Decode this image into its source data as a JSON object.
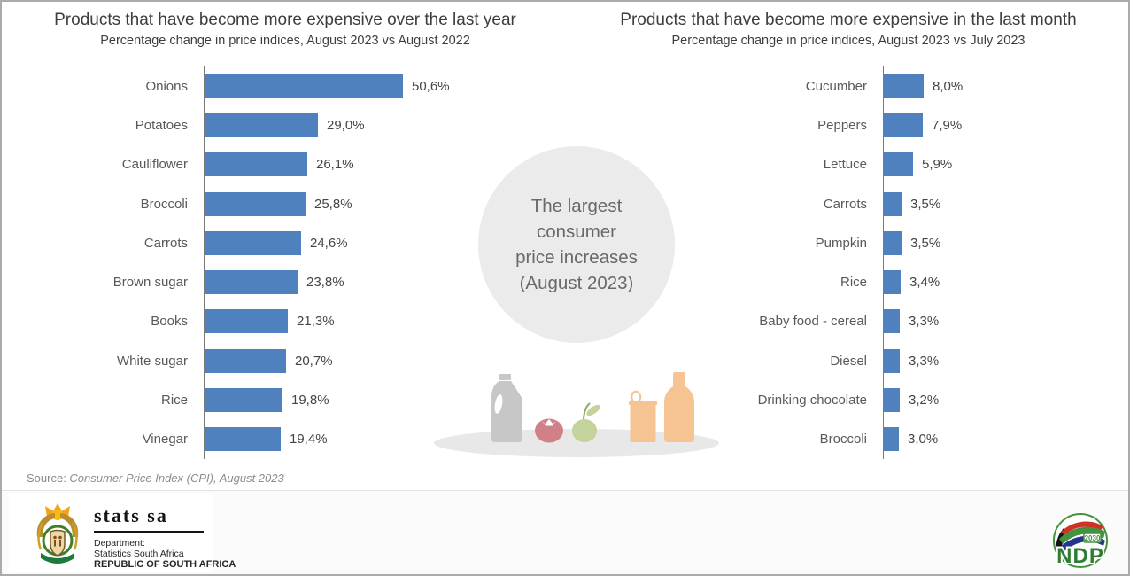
{
  "chart_data": [
    {
      "type": "bar",
      "orientation": "horizontal",
      "title": "Products that have become more expensive over the last year",
      "subtitle": "Percentage change in price indices, August 2023 vs August 2022",
      "categories": [
        "Onions",
        "Potatoes",
        "Cauliflower",
        "Broccoli",
        "Carrots",
        "Brown sugar",
        "Books",
        "White sugar",
        "Rice",
        "Vinegar"
      ],
      "values": [
        50.6,
        29.0,
        26.1,
        25.8,
        24.6,
        23.8,
        21.3,
        20.7,
        19.8,
        19.4
      ],
      "value_labels": [
        "50,6%",
        "29,0%",
        "26,1%",
        "25,8%",
        "24,6%",
        "23,8%",
        "21,3%",
        "20,7%",
        "19,8%",
        "19,4%"
      ],
      "bar_color": "#4e81bd",
      "grid": false,
      "legend": false,
      "axis_tick_labels_visible": false
    },
    {
      "type": "bar",
      "orientation": "horizontal",
      "title": "Products that have become more expensive in the last month",
      "subtitle": "Percentage change in price indices, August 2023 vs July 2023",
      "categories": [
        "Cucumber",
        "Peppers",
        "Lettuce",
        "Carrots",
        "Pumpkin",
        "Rice",
        "Baby food - cereal",
        "Diesel",
        "Drinking chocolate",
        "Broccoli"
      ],
      "values": [
        8.0,
        7.9,
        5.9,
        3.5,
        3.5,
        3.4,
        3.3,
        3.3,
        3.2,
        3.0
      ],
      "value_labels": [
        "8,0%",
        "7,9%",
        "5,9%",
        "3,5%",
        "3,5%",
        "3,4%",
        "3,3%",
        "3,3%",
        "3,2%",
        "3,0%"
      ],
      "bar_color": "#4e81bd",
      "grid": false,
      "legend": false,
      "axis_tick_labels_visible": false
    }
  ],
  "center_callout": {
    "lines": [
      "The largest",
      "consumer",
      "price increases",
      "(August 2023)"
    ],
    "circle_color": "#ebebeb",
    "text_color": "#696969"
  },
  "icons": {
    "names": [
      "milk-jug-icon",
      "tomato-icon",
      "apple-icon",
      "canned-food-icon",
      "bottle-icon"
    ],
    "colors": {
      "jug": "#c7c7c7",
      "tomato": "#cf8187",
      "apple": "#c3d39b",
      "stem_green": "#90a860",
      "orange": "#f6c392",
      "plate": "#e8e8e8"
    }
  },
  "source": {
    "prefix": "Source: ",
    "citation": "Consumer Price Index (CPI), August 2023"
  },
  "footer": {
    "stats_sa": {
      "wordmark": "stats sa",
      "line1": "Department:",
      "line2": "Statistics South Africa",
      "line3": "REPUBLIC OF SOUTH AFRICA"
    },
    "ndp": {
      "year": "2030",
      "acronym": "NDP"
    }
  },
  "colors": {
    "bar_blue": "#4e81bd",
    "axis_gray": "#7a7a7a",
    "title_gray": "#3d3d3d",
    "label_gray": "#595959"
  }
}
